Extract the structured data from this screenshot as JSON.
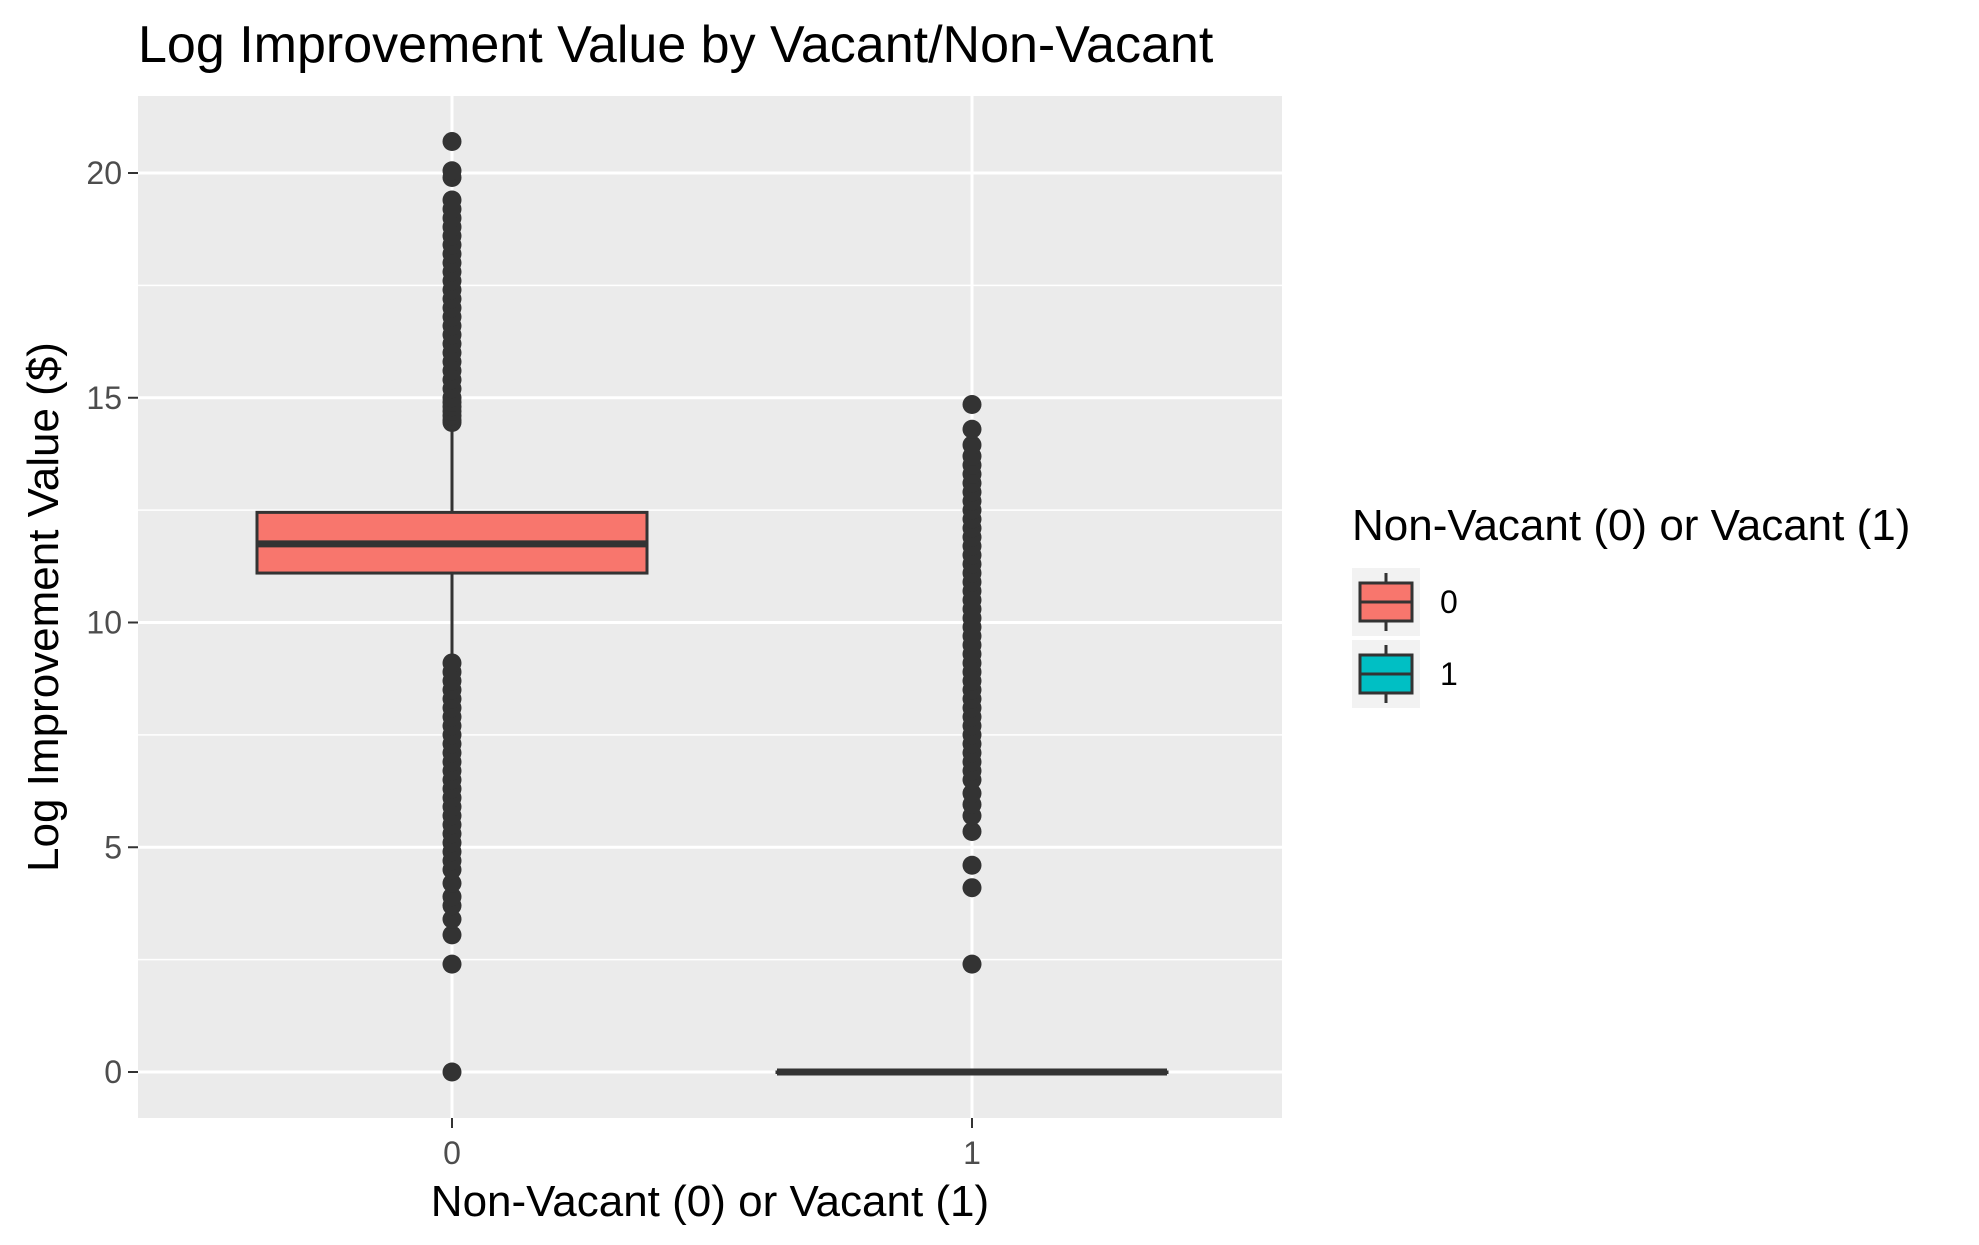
{
  "chart_data": {
    "type": "boxplot",
    "title": "Log Improvement Value by Vacant/Non-Vacant",
    "xlabel": "Non-Vacant (0) or Vacant (1)",
    "ylabel": "Log Improvement Value ($)",
    "categories": [
      "0",
      "1"
    ],
    "y_ticks": [
      0,
      5,
      10,
      15,
      20
    ],
    "ylim": [
      -1,
      21.6
    ],
    "grid": true,
    "legend": {
      "title": "Non-Vacant (0) or Vacant (1)",
      "placement": "right",
      "entries": [
        {
          "label": "0",
          "color": "#F8766D"
        },
        {
          "label": "1",
          "color": "#00BFC4"
        }
      ]
    },
    "boxes": [
      {
        "category": "0",
        "color": "#F8766D",
        "q1": 11.1,
        "median": 11.75,
        "q3": 12.45,
        "whisker_low": 9.15,
        "whisker_high": 14.4,
        "outliers_high": [
          14.45,
          14.5,
          14.6,
          14.7,
          14.8,
          14.9,
          15.0,
          15.2,
          15.4,
          15.6,
          15.8,
          16.0,
          16.2,
          16.4,
          16.6,
          16.8,
          17.0,
          17.2,
          17.4,
          17.6,
          17.8,
          18.0,
          18.2,
          18.4,
          18.6,
          18.8,
          19.0,
          19.2,
          19.4,
          19.9,
          20.05,
          20.7
        ],
        "outliers_low": [
          0,
          2.4,
          3.05,
          3.4,
          3.7,
          3.9,
          4.2,
          4.5,
          4.7,
          4.9,
          5.1,
          5.3,
          5.5,
          5.7,
          5.9,
          6.1,
          6.3,
          6.5,
          6.7,
          6.9,
          7.1,
          7.3,
          7.5,
          7.7,
          7.9,
          8.1,
          8.3,
          8.5,
          8.7,
          8.9,
          9.1
        ]
      },
      {
        "category": "1",
        "color": "#00BFC4",
        "q1": 0,
        "median": 0,
        "q3": 0,
        "whisker_low": 0,
        "whisker_high": 0,
        "outliers_high": [
          2.4,
          4.1,
          4.6,
          5.35,
          5.7,
          5.95,
          6.2,
          6.5,
          6.7,
          6.9,
          7.1,
          7.3,
          7.5,
          7.7,
          7.9,
          8.1,
          8.3,
          8.5,
          8.7,
          8.9,
          9.1,
          9.3,
          9.5,
          9.7,
          9.9,
          10.1,
          10.3,
          10.5,
          10.7,
          10.9,
          11.1,
          11.3,
          11.5,
          11.7,
          11.9,
          12.1,
          12.3,
          12.5,
          12.7,
          12.9,
          13.1,
          13.3,
          13.5,
          13.7,
          13.95,
          14.3,
          14.85
        ],
        "outliers_low": []
      }
    ]
  }
}
